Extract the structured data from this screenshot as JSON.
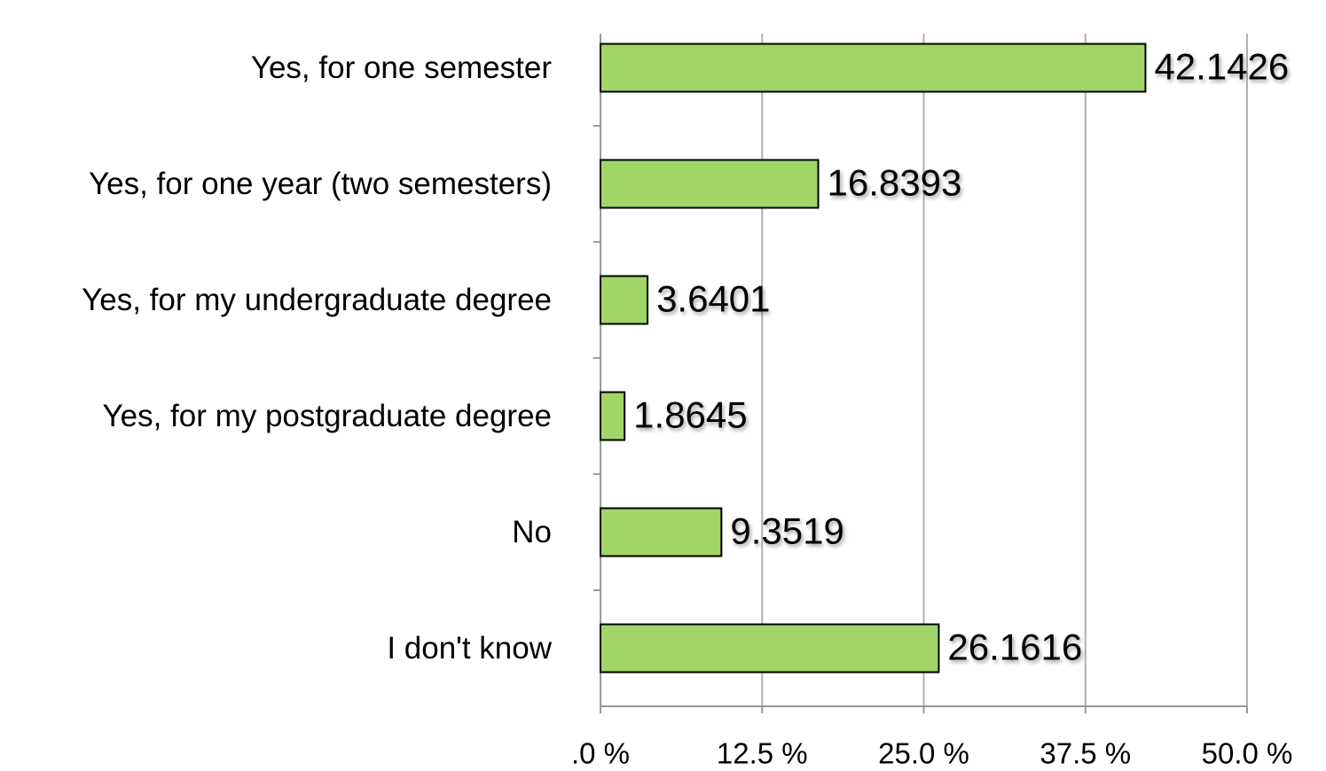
{
  "chart_data": {
    "type": "barh",
    "categories": [
      "Yes, for one semester",
      "Yes, for one year (two semesters)",
      "Yes, for my undergraduate degree",
      "Yes, for my postgraduate degree",
      "No",
      "I don't know"
    ],
    "values": [
      42.1426,
      16.8393,
      3.6401,
      1.8645,
      9.3519,
      26.1616
    ],
    "color": "#a0d568",
    "xlim": [
      0,
      50
    ],
    "xticks": [
      {
        "value": 0,
        "label": ".0 %"
      },
      {
        "value": 12.5,
        "label": "12.5 %"
      },
      {
        "value": 25,
        "label": "25.0 %"
      },
      {
        "value": 37.5,
        "label": "37.5 %"
      },
      {
        "value": 50,
        "label": "50.0 %"
      }
    ],
    "grid": true
  }
}
